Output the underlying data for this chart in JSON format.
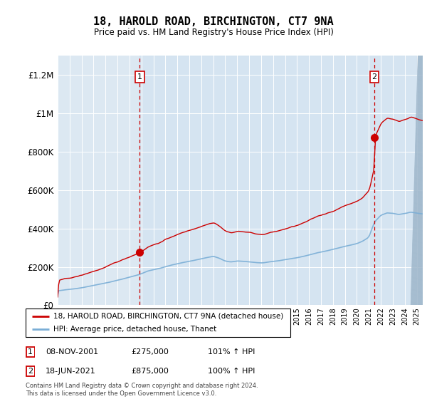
{
  "title": "18, HAROLD ROAD, BIRCHINGTON, CT7 9NA",
  "subtitle": "Price paid vs. HM Land Registry's House Price Index (HPI)",
  "legend_line1": "18, HAROLD ROAD, BIRCHINGTON, CT7 9NA (detached house)",
  "legend_line2": "HPI: Average price, detached house, Thanet",
  "sale1_date": "08-NOV-2001",
  "sale1_price": "£275,000",
  "sale1_pct": "101% ↑ HPI",
  "sale2_date": "18-JUN-2021",
  "sale2_price": "£875,000",
  "sale2_pct": "100% ↑ HPI",
  "footer": "Contains HM Land Registry data © Crown copyright and database right 2024.\nThis data is licensed under the Open Government Licence v3.0.",
  "red_color": "#cc0000",
  "blue_color": "#7aaed6",
  "plot_bg": "#dce8f2",
  "grid_color": "#c0cfe0",
  "marker1_year": 2001.854,
  "marker2_year": 2021.456,
  "sale1_value": 275000,
  "sale2_value": 875000,
  "xmin": 1995,
  "xmax": 2025.5,
  "ymin": 0,
  "ymax": 1300000
}
